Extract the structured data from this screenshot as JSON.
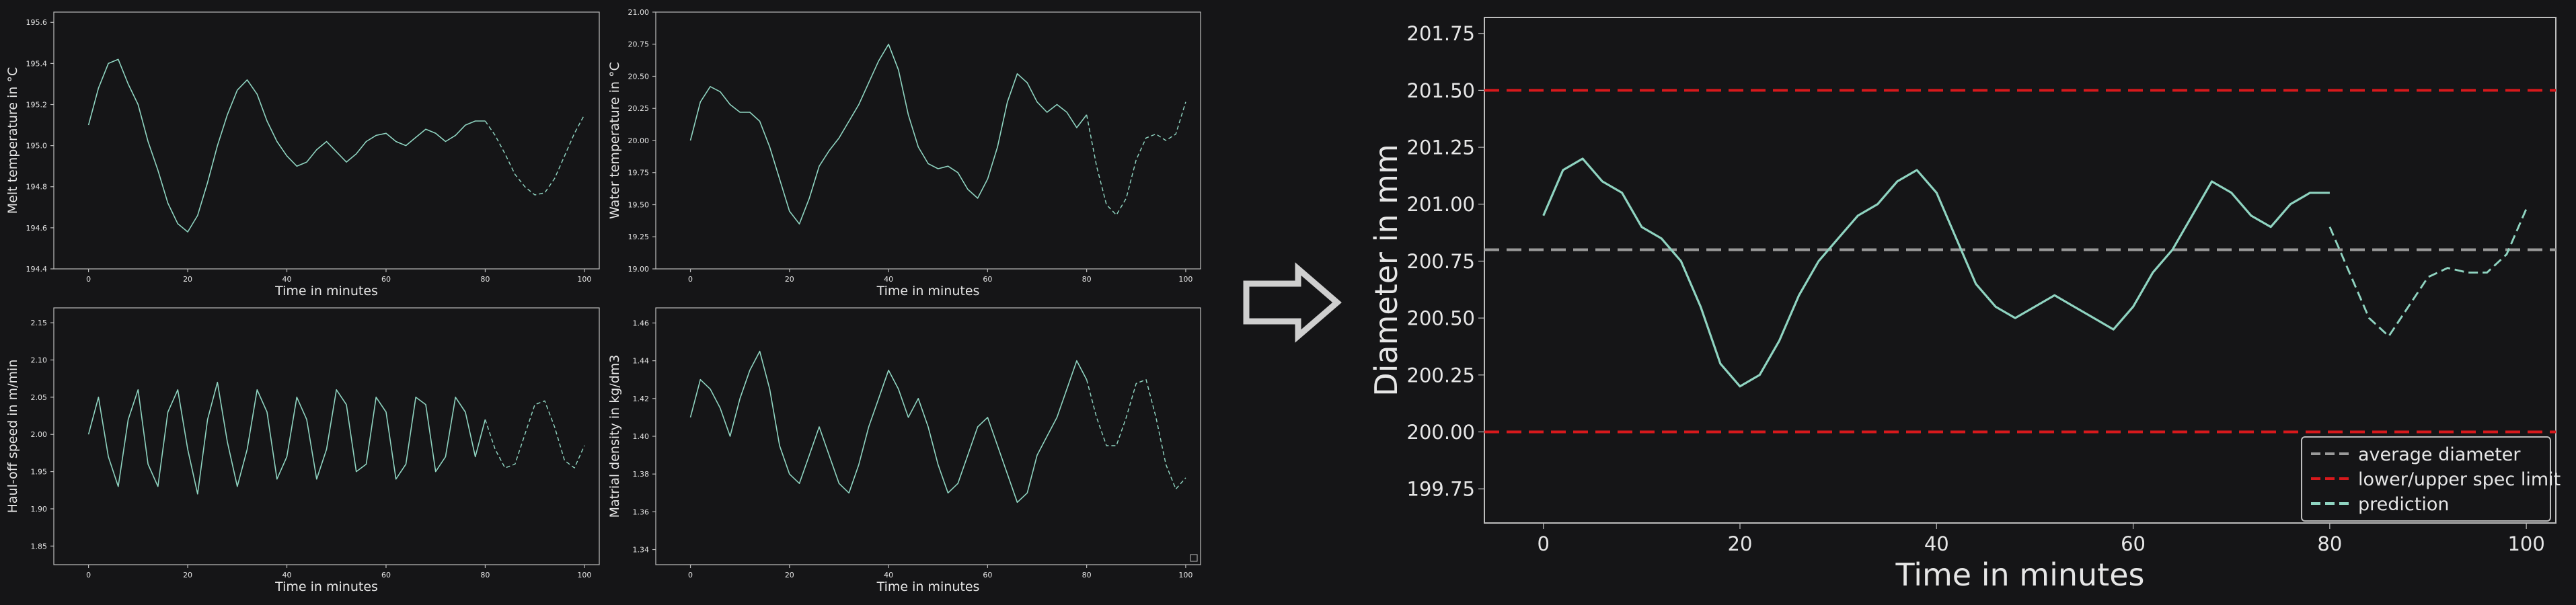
{
  "colors": {
    "background": "#151517",
    "axes_frame": "#bdbdbd",
    "signal": "#8fd4c1",
    "spec_limit": "#d7191c",
    "average": "#9a9a9a",
    "text": "#e6e6e6",
    "arrow": "#cfcfcf"
  },
  "icons": {
    "arrow": "right-arrow-icon"
  },
  "chart_data": [
    {
      "type": "line",
      "xlabel": "Time in minutes",
      "ylabel": "Melt temperature in °C",
      "xlim": [
        -7,
        103
      ],
      "ylim": [
        194.4,
        195.65
      ],
      "xticks": [
        "0",
        "20",
        "40",
        "60",
        "80",
        "100"
      ],
      "yticks": [
        "194.4",
        "194.6",
        "194.8",
        "195.0",
        "195.2",
        "195.4",
        "195.6"
      ],
      "series": [
        {
          "style": "solid",
          "x": [
            0,
            2,
            4,
            6,
            8,
            10,
            12,
            14,
            16,
            18,
            20,
            22,
            24,
            26,
            28,
            30,
            32,
            34,
            36,
            38,
            40,
            42,
            44,
            46,
            48,
            50,
            52,
            54,
            56,
            58,
            60,
            62,
            64,
            66,
            68,
            70,
            72,
            74,
            76,
            78,
            80
          ],
          "y": [
            195.1,
            195.28,
            195.4,
            195.42,
            195.3,
            195.2,
            195.02,
            194.88,
            194.72,
            194.62,
            194.58,
            194.66,
            194.82,
            195.0,
            195.15,
            195.27,
            195.32,
            195.25,
            195.12,
            195.02,
            194.95,
            194.9,
            194.92,
            194.98,
            195.02,
            194.97,
            194.92,
            194.96,
            195.02,
            195.05,
            195.06,
            195.02,
            195.0,
            195.04,
            195.08,
            195.06,
            195.02,
            195.05,
            195.1,
            195.12,
            195.12
          ]
        },
        {
          "style": "dashed",
          "x": [
            80,
            82,
            84,
            86,
            88,
            90,
            92,
            94,
            96,
            98,
            100
          ],
          "y": [
            195.12,
            195.05,
            194.96,
            194.86,
            194.8,
            194.76,
            194.77,
            194.84,
            194.95,
            195.06,
            195.15
          ]
        }
      ]
    },
    {
      "type": "line",
      "xlabel": "Time in minutes",
      "ylabel": "Water temperature in °C",
      "xlim": [
        -7,
        103
      ],
      "ylim": [
        19.0,
        21.0
      ],
      "xticks": [
        "0",
        "20",
        "40",
        "60",
        "80",
        "100"
      ],
      "yticks": [
        "19.00",
        "19.25",
        "19.50",
        "19.75",
        "20.00",
        "20.25",
        "20.50",
        "20.75",
        "21.00"
      ],
      "series": [
        {
          "style": "solid",
          "x": [
            0,
            2,
            4,
            6,
            8,
            10,
            12,
            14,
            16,
            18,
            20,
            22,
            24,
            26,
            28,
            30,
            32,
            34,
            36,
            38,
            40,
            42,
            44,
            46,
            48,
            50,
            52,
            54,
            56,
            58,
            60,
            62,
            64,
            66,
            68,
            70,
            72,
            74,
            76,
            78,
            80
          ],
          "y": [
            20.0,
            20.3,
            20.42,
            20.38,
            20.28,
            20.22,
            20.22,
            20.15,
            19.95,
            19.7,
            19.45,
            19.35,
            19.55,
            19.8,
            19.92,
            20.02,
            20.15,
            20.28,
            20.45,
            20.62,
            20.75,
            20.55,
            20.2,
            19.95,
            19.82,
            19.78,
            19.8,
            19.75,
            19.62,
            19.55,
            19.7,
            19.95,
            20.3,
            20.52,
            20.45,
            20.3,
            20.22,
            20.28,
            20.22,
            20.1,
            20.2
          ]
        },
        {
          "style": "dashed",
          "x": [
            80,
            82,
            84,
            86,
            88,
            90,
            92,
            94,
            96,
            98,
            100
          ],
          "y": [
            20.2,
            19.8,
            19.5,
            19.42,
            19.55,
            19.85,
            20.02,
            20.05,
            20.0,
            20.05,
            20.3
          ]
        }
      ]
    },
    {
      "type": "line",
      "xlabel": "Time in minutes",
      "ylabel": "Haul-off speed in m/min",
      "xlim": [
        -7,
        103
      ],
      "ylim": [
        1.825,
        2.17
      ],
      "xticks": [
        "0",
        "20",
        "40",
        "60",
        "80",
        "100"
      ],
      "yticks": [
        "1.85",
        "1.90",
        "1.95",
        "2.00",
        "2.05",
        "2.10",
        "2.15"
      ],
      "series": [
        {
          "style": "solid",
          "x": [
            0,
            2,
            4,
            6,
            8,
            10,
            12,
            14,
            16,
            18,
            20,
            22,
            24,
            26,
            28,
            30,
            32,
            34,
            36,
            38,
            40,
            42,
            44,
            46,
            48,
            50,
            52,
            54,
            56,
            58,
            60,
            62,
            64,
            66,
            68,
            70,
            72,
            74,
            76,
            78,
            80
          ],
          "y": [
            2.0,
            2.05,
            1.97,
            1.93,
            2.02,
            2.06,
            1.96,
            1.93,
            2.03,
            2.06,
            1.98,
            1.92,
            2.02,
            2.07,
            1.99,
            1.93,
            1.98,
            2.06,
            2.03,
            1.94,
            1.97,
            2.05,
            2.02,
            1.94,
            1.98,
            2.06,
            2.04,
            1.95,
            1.96,
            2.05,
            2.03,
            1.94,
            1.96,
            2.05,
            2.04,
            1.95,
            1.97,
            2.05,
            2.03,
            1.97,
            2.02
          ]
        },
        {
          "style": "dashed",
          "x": [
            80,
            82,
            84,
            86,
            88,
            90,
            92,
            94,
            96,
            98,
            100
          ],
          "y": [
            2.02,
            1.98,
            1.955,
            1.96,
            2.0,
            2.04,
            2.045,
            2.01,
            1.965,
            1.955,
            1.985
          ]
        }
      ]
    },
    {
      "type": "line",
      "xlabel": "Time in minutes",
      "ylabel": "Matrial density in kg/dm3",
      "xlim": [
        -7,
        103
      ],
      "ylim": [
        1.332,
        1.468
      ],
      "xticks": [
        "0",
        "20",
        "40",
        "60",
        "80",
        "100"
      ],
      "yticks": [
        "1.34",
        "1.36",
        "1.38",
        "1.40",
        "1.42",
        "1.44",
        "1.46"
      ],
      "series": [
        {
          "style": "solid",
          "x": [
            0,
            2,
            4,
            6,
            8,
            10,
            12,
            14,
            16,
            18,
            20,
            22,
            24,
            26,
            28,
            30,
            32,
            34,
            36,
            38,
            40,
            42,
            44,
            46,
            48,
            50,
            52,
            54,
            56,
            58,
            60,
            62,
            64,
            66,
            68,
            70,
            72,
            74,
            76,
            78,
            80
          ],
          "y": [
            1.41,
            1.43,
            1.425,
            1.415,
            1.4,
            1.42,
            1.435,
            1.445,
            1.425,
            1.395,
            1.38,
            1.375,
            1.39,
            1.405,
            1.39,
            1.375,
            1.37,
            1.385,
            1.405,
            1.42,
            1.435,
            1.425,
            1.41,
            1.42,
            1.405,
            1.385,
            1.37,
            1.375,
            1.39,
            1.405,
            1.41,
            1.395,
            1.38,
            1.365,
            1.37,
            1.39,
            1.4,
            1.41,
            1.425,
            1.44,
            1.43
          ]
        },
        {
          "style": "dashed",
          "x": [
            80,
            82,
            84,
            86,
            88,
            90,
            92,
            94,
            96,
            98,
            100
          ],
          "y": [
            1.43,
            1.41,
            1.395,
            1.395,
            1.41,
            1.428,
            1.43,
            1.41,
            1.385,
            1.372,
            1.378
          ]
        }
      ]
    },
    {
      "type": "line",
      "xlabel": "Time in minutes",
      "ylabel": "Diameter in mm",
      "xlim": [
        -6,
        103
      ],
      "ylim": [
        199.6,
        201.82
      ],
      "xticks": [
        "0",
        "20",
        "40",
        "60",
        "80",
        "100"
      ],
      "yticks": [
        "199.75",
        "200.00",
        "200.25",
        "200.50",
        "200.75",
        "201.00",
        "201.25",
        "201.50",
        "201.75"
      ],
      "legend_position": "lower-right",
      "hlines": [
        {
          "name": "average diameter",
          "y": 200.8,
          "style": "dashed"
        },
        {
          "name": "lower/upper spec limit",
          "y": 200.0,
          "style": "dashed"
        },
        {
          "name": "lower/upper spec limit",
          "y": 201.5,
          "style": "dashed"
        }
      ],
      "series": [
        {
          "style": "solid",
          "x": [
            0,
            2,
            4,
            6,
            8,
            10,
            12,
            14,
            16,
            18,
            20,
            22,
            24,
            26,
            28,
            30,
            32,
            34,
            36,
            38,
            40,
            42,
            44,
            46,
            48,
            50,
            52,
            54,
            56,
            58,
            60,
            62,
            64,
            66,
            68,
            70,
            72,
            74,
            76,
            78,
            80
          ],
          "y": [
            200.95,
            201.15,
            201.2,
            201.1,
            201.05,
            200.9,
            200.85,
            200.75,
            200.55,
            200.3,
            200.2,
            200.25,
            200.4,
            200.6,
            200.75,
            200.85,
            200.95,
            201.0,
            201.1,
            201.15,
            201.05,
            200.85,
            200.65,
            200.55,
            200.5,
            200.55,
            200.6,
            200.55,
            200.5,
            200.45,
            200.55,
            200.7,
            200.8,
            200.95,
            201.1,
            201.05,
            200.95,
            200.9,
            201.0,
            201.05,
            201.05
          ]
        },
        {
          "name": "prediction",
          "style": "dashed",
          "x": [
            80,
            82,
            84,
            86,
            88,
            90,
            92,
            94,
            96,
            98,
            100
          ],
          "y": [
            200.9,
            200.7,
            200.5,
            200.42,
            200.55,
            200.68,
            200.72,
            200.7,
            200.7,
            200.78,
            200.98
          ]
        }
      ]
    }
  ]
}
